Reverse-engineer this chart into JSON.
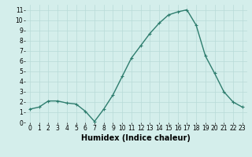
{
  "x": [
    0,
    1,
    2,
    3,
    4,
    5,
    6,
    7,
    8,
    9,
    10,
    11,
    12,
    13,
    14,
    15,
    16,
    17,
    18,
    19,
    20,
    21,
    22,
    23
  ],
  "y": [
    1.3,
    1.5,
    2.1,
    2.1,
    1.9,
    1.8,
    1.1,
    0.1,
    1.3,
    2.7,
    4.5,
    6.3,
    7.5,
    8.7,
    9.7,
    10.5,
    10.8,
    11.0,
    9.5,
    6.5,
    4.8,
    3.0,
    2.0,
    1.5
  ],
  "line_color": "#2e7d6e",
  "marker": "+",
  "marker_size": 3,
  "bg_color": "#d4eeeb",
  "grid_color": "#b8dbd8",
  "xlabel": "Humidex (Indice chaleur)",
  "xlim": [
    -0.5,
    23.5
  ],
  "ylim": [
    0,
    11.5
  ],
  "yticks": [
    0,
    1,
    2,
    3,
    4,
    5,
    6,
    7,
    8,
    9,
    10,
    11
  ],
  "xticks": [
    0,
    1,
    2,
    3,
    4,
    5,
    6,
    7,
    8,
    9,
    10,
    11,
    12,
    13,
    14,
    15,
    16,
    17,
    18,
    19,
    20,
    21,
    22,
    23
  ],
  "tick_fontsize": 5.5,
  "xlabel_fontsize": 7,
  "linewidth": 1.0
}
